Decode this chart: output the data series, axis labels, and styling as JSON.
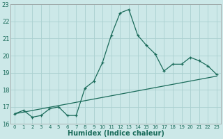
{
  "title": "",
  "xlabel": "Humidex (Indice chaleur)",
  "bg_color": "#cce8e8",
  "grid_color": "#aad0d0",
  "line_color": "#1a6b5a",
  "x_data": [
    0,
    1,
    2,
    3,
    4,
    5,
    6,
    7,
    8,
    9,
    10,
    11,
    12,
    13,
    14,
    15,
    16,
    17,
    18,
    19,
    20,
    21,
    22,
    23
  ],
  "y_curve": [
    16.6,
    16.8,
    16.4,
    16.5,
    16.9,
    17.0,
    16.5,
    16.5,
    18.1,
    18.5,
    19.6,
    21.2,
    22.5,
    22.7,
    21.2,
    20.6,
    20.1,
    19.1,
    19.5,
    19.5,
    19.9,
    19.7,
    19.4,
    18.9
  ],
  "y_linear_start": 16.6,
  "y_linear_end": 18.8,
  "ylim": [
    16,
    23
  ],
  "xlim": [
    0,
    23
  ],
  "yticks": [
    16,
    17,
    18,
    19,
    20,
    21,
    22,
    23
  ],
  "xticks": [
    0,
    1,
    2,
    3,
    4,
    5,
    6,
    7,
    8,
    9,
    10,
    11,
    12,
    13,
    14,
    15,
    16,
    17,
    18,
    19,
    20,
    21,
    22,
    23
  ]
}
